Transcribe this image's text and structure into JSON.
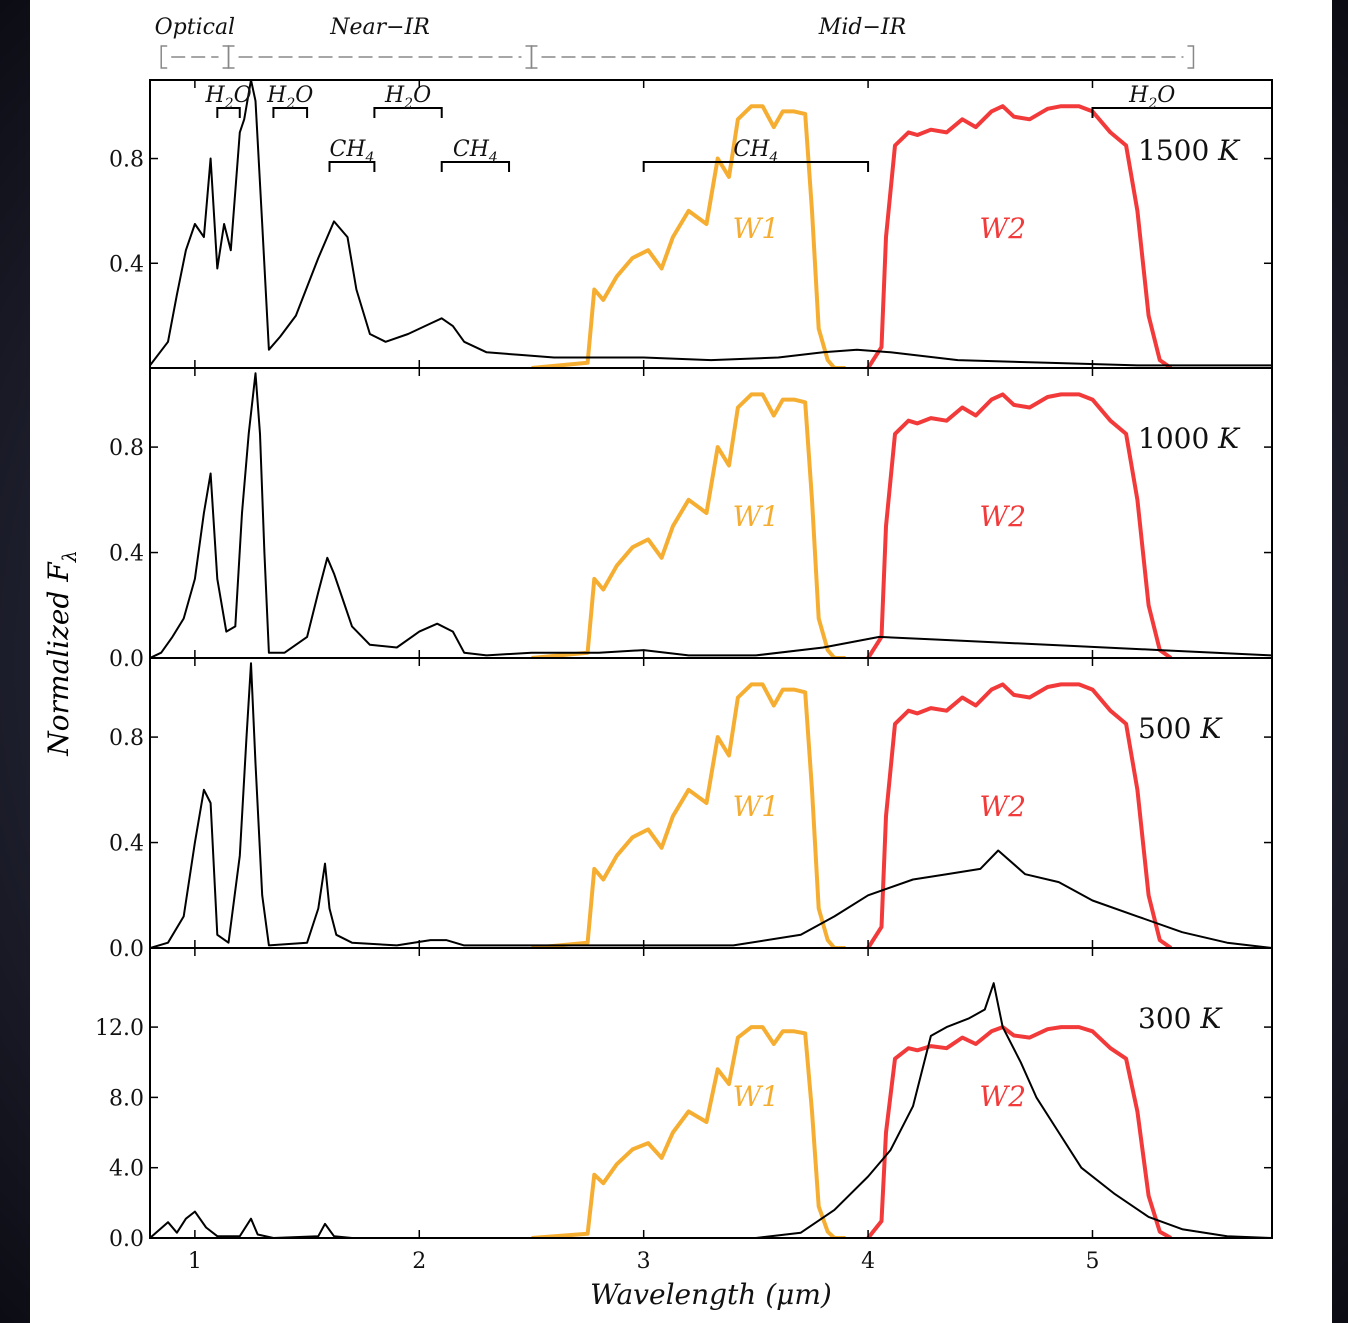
{
  "chart_data": {
    "type": "line",
    "xlabel": "Wavelength (μm)",
    "ylabel": "Normalized F_λ",
    "xlim": [
      0.8,
      5.8
    ],
    "x_ticks": [
      "1",
      "2",
      "3",
      "4",
      "5"
    ],
    "regions": [
      {
        "label": "Optical",
        "range": [
          0.85,
          1.15
        ],
        "bracket": "[---]"
      },
      {
        "label": "Near−IR",
        "range": [
          1.15,
          2.5
        ],
        "bracket": "[--------------]"
      },
      {
        "label": "Mid−IR",
        "range": [
          2.5,
          5.45
        ],
        "bracket": "[------------------------------]"
      }
    ],
    "features": [
      {
        "label": "H2O",
        "range": [
          1.1,
          1.2
        ],
        "row": 1
      },
      {
        "label": "H2O",
        "range": [
          1.35,
          1.5
        ],
        "row": 1
      },
      {
        "label": "H2O",
        "range": [
          1.8,
          2.1
        ],
        "row": 1
      },
      {
        "label": "H2O",
        "range": [
          5.0,
          5.8
        ],
        "row": 1
      },
      {
        "label": "CH4",
        "range": [
          1.6,
          1.8
        ],
        "row": 2
      },
      {
        "label": "CH4",
        "range": [
          2.1,
          2.4
        ],
        "row": 2
      },
      {
        "label": "CH4",
        "range": [
          3.0,
          4.0
        ],
        "row": 2
      }
    ],
    "band_labels": {
      "w1": "W1",
      "w2": "W2"
    },
    "colors": {
      "w1": "#f5ae32",
      "w2": "#f23a3a",
      "spectrum": "#000000",
      "w2_fill_edge": "#d9d000"
    },
    "filters": {
      "W1": {
        "x": [
          2.5,
          2.75,
          2.78,
          2.82,
          2.88,
          2.95,
          3.02,
          3.08,
          3.13,
          3.2,
          3.28,
          3.33,
          3.38,
          3.42,
          3.48,
          3.53,
          3.58,
          3.62,
          3.67,
          3.72,
          3.75,
          3.78,
          3.82,
          3.85,
          3.9
        ],
        "y": [
          0.0,
          0.02,
          0.3,
          0.26,
          0.35,
          0.42,
          0.45,
          0.38,
          0.5,
          0.6,
          0.55,
          0.8,
          0.73,
          0.95,
          1.0,
          1.0,
          0.92,
          0.98,
          0.98,
          0.97,
          0.6,
          0.15,
          0.03,
          0.0,
          0.0
        ]
      },
      "W2": {
        "x": [
          4.0,
          4.06,
          4.08,
          4.12,
          4.18,
          4.22,
          4.28,
          4.35,
          4.42,
          4.48,
          4.55,
          4.6,
          4.65,
          4.72,
          4.8,
          4.86,
          4.94,
          5.0,
          5.08,
          5.15,
          5.2,
          5.25,
          5.3,
          5.35
        ],
        "y": [
          0.0,
          0.08,
          0.5,
          0.85,
          0.9,
          0.89,
          0.91,
          0.9,
          0.95,
          0.92,
          0.98,
          1.0,
          0.96,
          0.95,
          0.99,
          1.0,
          1.0,
          0.98,
          0.9,
          0.85,
          0.6,
          0.2,
          0.03,
          0.0
        ]
      }
    },
    "panels": [
      {
        "label": "1500 K",
        "temperature": "1500",
        "ylim": [
          0,
          1.1
        ],
        "y_ticks": [
          "0.4",
          "0.8"
        ],
        "y_tick_values": [
          0.4,
          0.8
        ],
        "filter_scale": 1.0,
        "spectrum": {
          "x": [
            0.8,
            0.88,
            0.92,
            0.96,
            1.0,
            1.04,
            1.07,
            1.1,
            1.13,
            1.16,
            1.2,
            1.22,
            1.25,
            1.27,
            1.3,
            1.33,
            1.38,
            1.45,
            1.55,
            1.62,
            1.68,
            1.72,
            1.78,
            1.85,
            1.95,
            2.05,
            2.1,
            2.15,
            2.2,
            2.3,
            2.45,
            2.6,
            2.8,
            3.0,
            3.3,
            3.6,
            3.8,
            3.95,
            4.1,
            4.4,
            4.8,
            5.2,
            5.6,
            5.8
          ],
          "y": [
            0.01,
            0.1,
            0.28,
            0.45,
            0.55,
            0.5,
            0.8,
            0.38,
            0.55,
            0.45,
            0.9,
            0.95,
            1.1,
            1.02,
            0.55,
            0.07,
            0.12,
            0.2,
            0.42,
            0.56,
            0.5,
            0.3,
            0.13,
            0.1,
            0.13,
            0.17,
            0.19,
            0.16,
            0.1,
            0.06,
            0.05,
            0.04,
            0.04,
            0.04,
            0.03,
            0.04,
            0.06,
            0.07,
            0.06,
            0.03,
            0.02,
            0.01,
            0.01,
            0.01
          ]
        }
      },
      {
        "label": "1000 K",
        "temperature": "1000",
        "ylim": [
          0,
          1.1
        ],
        "y_ticks": [
          "0.0",
          "0.4",
          "0.8"
        ],
        "y_tick_values": [
          0.0,
          0.4,
          0.8
        ],
        "filter_scale": 1.0,
        "spectrum": {
          "x": [
            0.8,
            0.85,
            0.9,
            0.95,
            1.0,
            1.04,
            1.07,
            1.1,
            1.14,
            1.18,
            1.21,
            1.24,
            1.27,
            1.29,
            1.31,
            1.33,
            1.4,
            1.5,
            1.55,
            1.59,
            1.62,
            1.66,
            1.7,
            1.78,
            1.9,
            2.0,
            2.08,
            2.15,
            2.2,
            2.3,
            2.5,
            2.8,
            3.0,
            3.2,
            3.5,
            3.8,
            4.05,
            4.3,
            4.8,
            5.3,
            5.8
          ],
          "y": [
            0.0,
            0.02,
            0.08,
            0.15,
            0.3,
            0.55,
            0.7,
            0.3,
            0.1,
            0.12,
            0.55,
            0.85,
            1.08,
            0.85,
            0.4,
            0.02,
            0.02,
            0.08,
            0.25,
            0.38,
            0.32,
            0.22,
            0.12,
            0.05,
            0.04,
            0.1,
            0.13,
            0.1,
            0.02,
            0.01,
            0.02,
            0.02,
            0.03,
            0.01,
            0.01,
            0.04,
            0.08,
            0.07,
            0.05,
            0.03,
            0.01
          ]
        }
      },
      {
        "label": "500 K",
        "temperature": "500",
        "ylim": [
          0,
          1.1
        ],
        "y_ticks": [
          "0.0",
          "0.4",
          "0.8"
        ],
        "y_tick_values": [
          0.0,
          0.4,
          0.8
        ],
        "filter_scale": 1.0,
        "spectrum": {
          "x": [
            0.8,
            0.88,
            0.95,
            1.0,
            1.04,
            1.07,
            1.1,
            1.15,
            1.2,
            1.23,
            1.25,
            1.27,
            1.3,
            1.33,
            1.5,
            1.55,
            1.58,
            1.6,
            1.63,
            1.7,
            1.9,
            2.05,
            2.12,
            2.2,
            2.5,
            3.0,
            3.4,
            3.7,
            3.85,
            4.0,
            4.2,
            4.35,
            4.5,
            4.58,
            4.7,
            4.85,
            5.0,
            5.2,
            5.4,
            5.6,
            5.8
          ],
          "y": [
            0.0,
            0.02,
            0.12,
            0.4,
            0.6,
            0.55,
            0.05,
            0.02,
            0.35,
            0.8,
            1.08,
            0.7,
            0.2,
            0.01,
            0.02,
            0.15,
            0.32,
            0.15,
            0.05,
            0.02,
            0.01,
            0.03,
            0.03,
            0.01,
            0.01,
            0.01,
            0.01,
            0.05,
            0.12,
            0.2,
            0.26,
            0.28,
            0.3,
            0.37,
            0.28,
            0.25,
            0.18,
            0.12,
            0.06,
            0.02,
            0.0
          ]
        }
      },
      {
        "label": "300 K",
        "temperature": "300",
        "ylim": [
          0,
          16.5
        ],
        "y_ticks": [
          "0.0",
          "4.0",
          "8.0",
          "12.0"
        ],
        "y_tick_values": [
          0.0,
          4.0,
          8.0,
          12.0
        ],
        "filter_scale": 12.0,
        "spectrum": {
          "x": [
            0.8,
            0.88,
            0.92,
            0.96,
            1.0,
            1.05,
            1.1,
            1.2,
            1.25,
            1.28,
            1.35,
            1.55,
            1.58,
            1.62,
            1.7,
            2.5,
            3.5,
            3.7,
            3.85,
            4.0,
            4.1,
            4.2,
            4.28,
            4.35,
            4.45,
            4.52,
            4.56,
            4.6,
            4.68,
            4.75,
            4.85,
            4.95,
            5.1,
            5.25,
            5.4,
            5.6,
            5.8
          ],
          "y": [
            0.0,
            0.9,
            0.3,
            1.1,
            1.5,
            0.6,
            0.1,
            0.1,
            1.1,
            0.2,
            0.0,
            0.1,
            0.8,
            0.1,
            0.0,
            0.0,
            0.0,
            0.3,
            1.6,
            3.5,
            5.0,
            7.5,
            11.5,
            12.0,
            12.5,
            13.0,
            14.5,
            12.0,
            10.0,
            8.0,
            6.0,
            4.0,
            2.5,
            1.2,
            0.5,
            0.1,
            0.0
          ]
        }
      }
    ]
  }
}
